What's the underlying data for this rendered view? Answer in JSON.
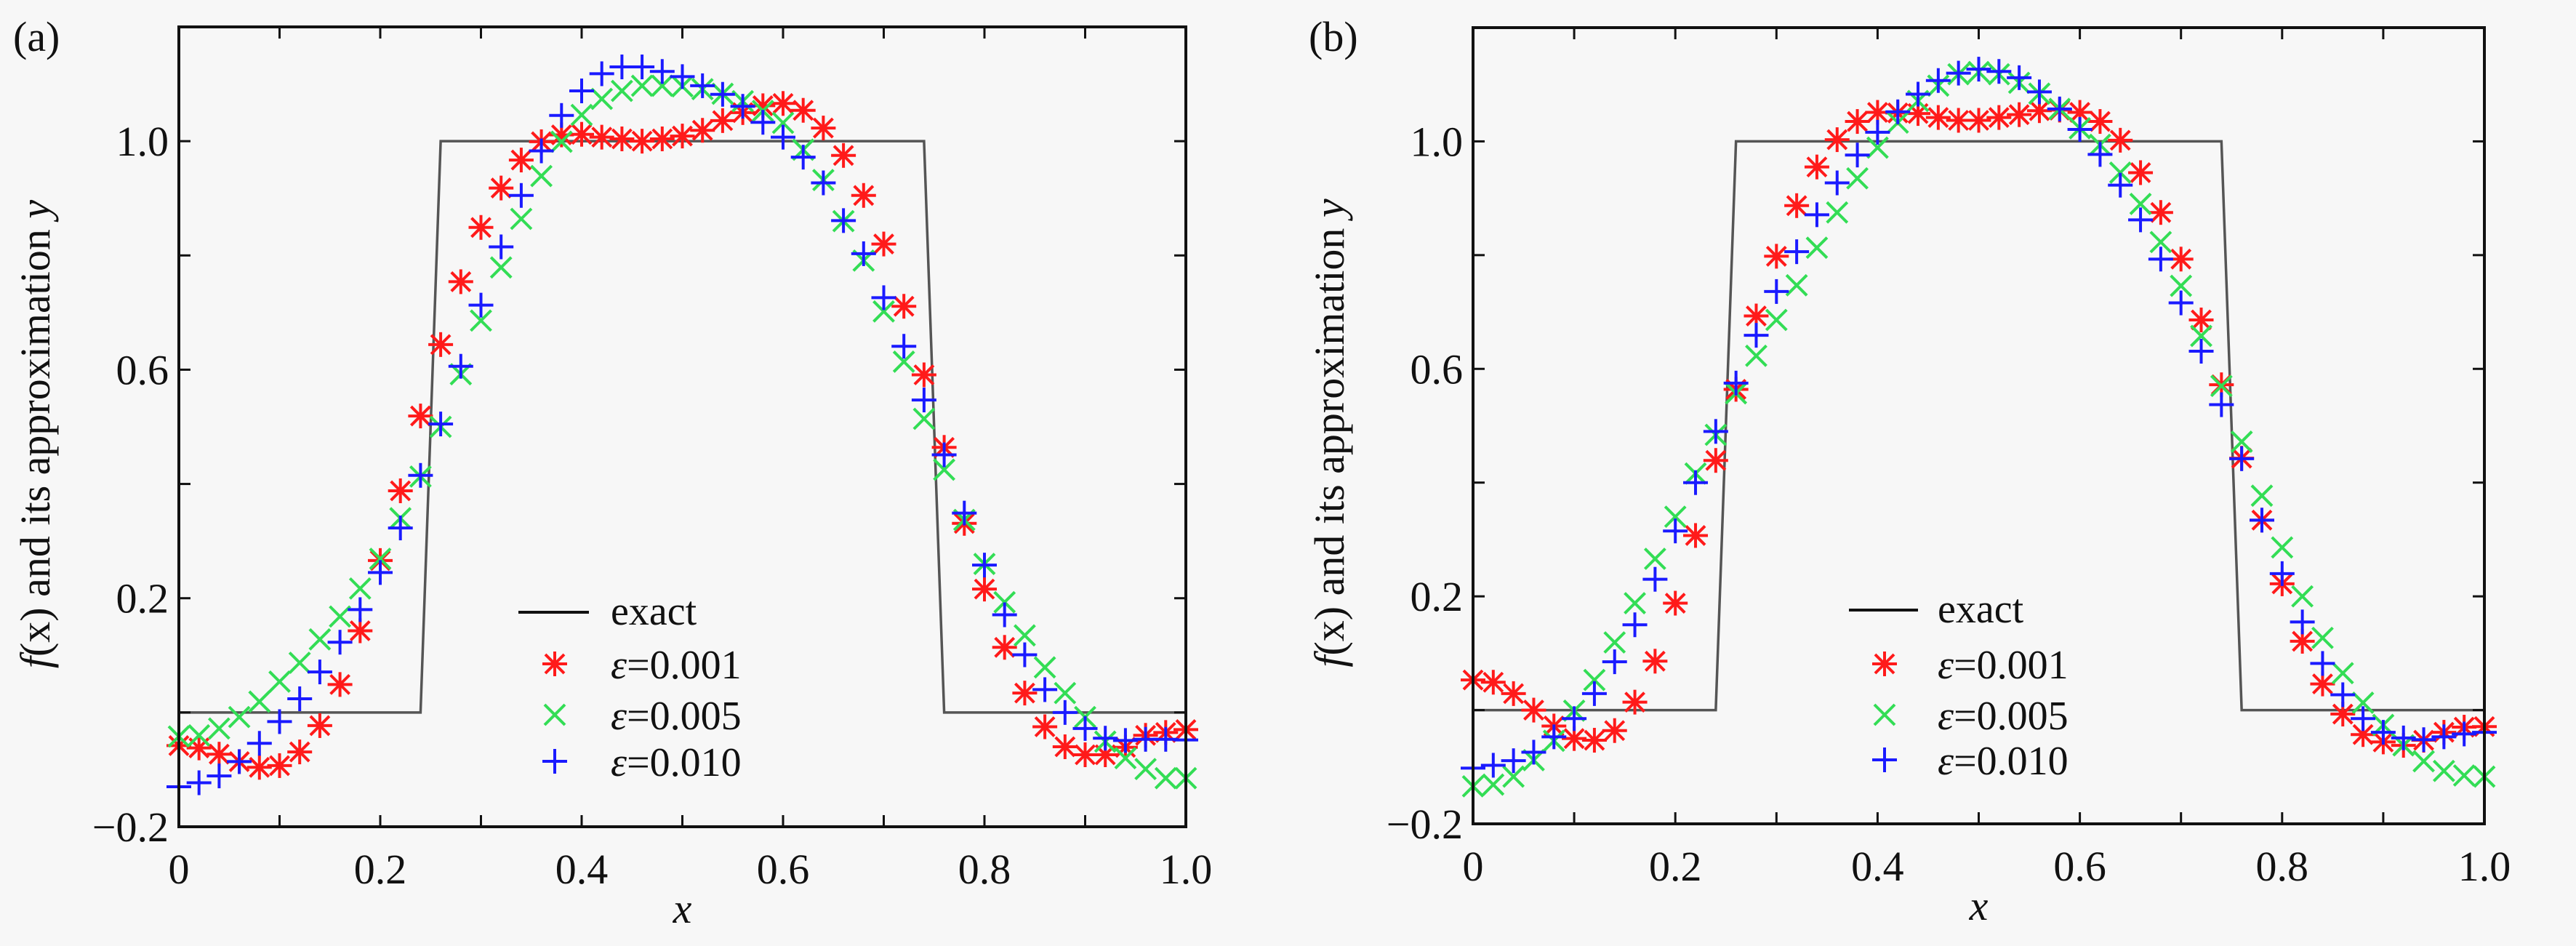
{
  "chart_data": [
    {
      "type": "scatter",
      "panel_label": "(a)",
      "xlabel": "x",
      "ylabel": {
        "f": "f",
        "x": "(x)",
        "rest": " and its approximation ",
        "y": "y"
      },
      "xlim": [
        0,
        1.0
      ],
      "ylim": [
        -0.2,
        1.2
      ],
      "xticks": [
        0,
        0.1,
        0.2,
        0.3,
        0.4,
        0.5,
        0.6,
        0.7,
        0.8,
        0.9,
        1.0
      ],
      "xtick_labels": [
        {
          "v": 0,
          "t": "0"
        },
        {
          "v": 0.2,
          "t": "0.2"
        },
        {
          "v": 0.4,
          "t": "0.4"
        },
        {
          "v": 0.6,
          "t": "0.6"
        },
        {
          "v": 0.8,
          "t": "0.8"
        },
        {
          "v": 1.0,
          "t": "1.0"
        }
      ],
      "yticks": [
        -0.2,
        0,
        0.2,
        0.4,
        0.6,
        0.8,
        1.0
      ],
      "ytick_labels": [
        {
          "v": -0.2,
          "t": "−0.2"
        },
        {
          "v": 0.2,
          "t": "0.2"
        },
        {
          "v": 0.6,
          "t": "0.6"
        },
        {
          "v": 1.0,
          "t": "1.0"
        }
      ],
      "grid": false,
      "legend_position": "lower-center",
      "exact": {
        "name": "exact",
        "x": [
          0,
          0.24,
          0.26,
          0.74,
          0.76,
          1.0
        ],
        "y": [
          0,
          0,
          1,
          1,
          0,
          0
        ],
        "color": "#555555"
      },
      "x": [
        0,
        0.02,
        0.04,
        0.06,
        0.08,
        0.1,
        0.12,
        0.14,
        0.16,
        0.18,
        0.2,
        0.22,
        0.24,
        0.26,
        0.28,
        0.3,
        0.32,
        0.34,
        0.36,
        0.38,
        0.4,
        0.42,
        0.44,
        0.46,
        0.48,
        0.5,
        0.52,
        0.54,
        0.56,
        0.58,
        0.6,
        0.62,
        0.64,
        0.66,
        0.68,
        0.7,
        0.72,
        0.74,
        0.76,
        0.78,
        0.8,
        0.82,
        0.84,
        0.86,
        0.88,
        0.9,
        0.92,
        0.94,
        0.96,
        0.98,
        1.0
      ],
      "series": [
        {
          "name": "ε=0.001",
          "eps": "0.001",
          "marker": "asterisk",
          "color": "#ff1a1a",
          "values": [
            -0.058,
            -0.062,
            -0.073,
            -0.086,
            -0.096,
            -0.093,
            -0.069,
            -0.023,
            0.049,
            0.143,
            0.266,
            0.388,
            0.519,
            0.644,
            0.754,
            0.849,
            0.918,
            0.967,
            0.999,
            1.011,
            1.012,
            1.007,
            1.004,
            1.0,
            1.004,
            1.009,
            1.019,
            1.036,
            1.05,
            1.062,
            1.066,
            1.054,
            1.023,
            0.975,
            0.905,
            0.82,
            0.711,
            0.591,
            0.464,
            0.331,
            0.216,
            0.114,
            0.034,
            -0.025,
            -0.06,
            -0.074,
            -0.074,
            -0.061,
            -0.04,
            -0.035,
            -0.03
          ]
        },
        {
          "name": "ε=0.005",
          "eps": "0.005",
          "marker": "x",
          "color": "#33dd55",
          "values": [
            -0.042,
            -0.04,
            -0.028,
            -0.008,
            0.019,
            0.054,
            0.087,
            0.128,
            0.168,
            0.217,
            0.269,
            0.34,
            0.413,
            0.5,
            0.592,
            0.686,
            0.779,
            0.864,
            0.939,
            0.999,
            1.046,
            1.074,
            1.088,
            1.097,
            1.097,
            1.096,
            1.091,
            1.083,
            1.07,
            1.053,
            1.032,
            0.985,
            0.932,
            0.86,
            0.791,
            0.702,
            0.614,
            0.514,
            0.425,
            0.337,
            0.26,
            0.193,
            0.135,
            0.079,
            0.034,
            -0.008,
            -0.051,
            -0.08,
            -0.099,
            -0.115,
            -0.115
          ]
        },
        {
          "name": "ε=0.010",
          "eps": "0.010",
          "marker": "plus",
          "color": "#1a1aff",
          "values": [
            -0.13,
            -0.123,
            -0.111,
            -0.086,
            -0.054,
            -0.016,
            0.024,
            0.071,
            0.123,
            0.18,
            0.245,
            0.323,
            0.415,
            0.505,
            0.606,
            0.713,
            0.815,
            0.905,
            0.983,
            1.045,
            1.088,
            1.118,
            1.13,
            1.13,
            1.122,
            1.113,
            1.097,
            1.082,
            1.061,
            1.033,
            1.007,
            0.972,
            0.927,
            0.861,
            0.803,
            0.726,
            0.641,
            0.547,
            0.451,
            0.349,
            0.258,
            0.171,
            0.101,
            0.04,
            0.0,
            -0.028,
            -0.045,
            -0.049,
            -0.047,
            -0.047,
            -0.048
          ]
        }
      ]
    },
    {
      "type": "scatter",
      "panel_label": "(b)",
      "xlabel": "x",
      "ylabel": {
        "f": "f",
        "x": "(x)",
        "rest": " and its approximation ",
        "y": "y"
      },
      "xlim": [
        0,
        1.0
      ],
      "ylim": [
        -0.2,
        1.2
      ],
      "xticks": [
        0,
        0.1,
        0.2,
        0.3,
        0.4,
        0.5,
        0.6,
        0.7,
        0.8,
        0.9,
        1.0
      ],
      "xtick_labels": [
        {
          "v": 0,
          "t": "0"
        },
        {
          "v": 0.2,
          "t": "0.2"
        },
        {
          "v": 0.4,
          "t": "0.4"
        },
        {
          "v": 0.6,
          "t": "0.6"
        },
        {
          "v": 0.8,
          "t": "0.8"
        },
        {
          "v": 1.0,
          "t": "1.0"
        }
      ],
      "yticks": [
        -0.2,
        0,
        0.2,
        0.4,
        0.6,
        0.8,
        1.0
      ],
      "ytick_labels": [
        {
          "v": -0.2,
          "t": "−0.2"
        },
        {
          "v": 0.2,
          "t": "0.2"
        },
        {
          "v": 0.6,
          "t": "0.6"
        },
        {
          "v": 1.0,
          "t": "1.0"
        }
      ],
      "grid": false,
      "legend_position": "lower-center",
      "exact": {
        "name": "exact",
        "x": [
          0,
          0.24,
          0.26,
          0.74,
          0.76,
          1.0
        ],
        "y": [
          0,
          0,
          1,
          1,
          0,
          0
        ],
        "color": "#555555"
      },
      "x": [
        0,
        0.02,
        0.04,
        0.06,
        0.08,
        0.1,
        0.12,
        0.14,
        0.16,
        0.18,
        0.2,
        0.22,
        0.24,
        0.26,
        0.28,
        0.3,
        0.32,
        0.34,
        0.36,
        0.38,
        0.4,
        0.42,
        0.44,
        0.46,
        0.48,
        0.5,
        0.52,
        0.54,
        0.56,
        0.58,
        0.6,
        0.62,
        0.64,
        0.66,
        0.68,
        0.7,
        0.72,
        0.74,
        0.76,
        0.78,
        0.8,
        0.82,
        0.84,
        0.86,
        0.88,
        0.9,
        0.92,
        0.94,
        0.96,
        0.98,
        1.0
      ],
      "series": [
        {
          "name": "ε=0.001",
          "eps": "0.001",
          "marker": "asterisk",
          "color": "#ff1a1a",
          "values": [
            0.053,
            0.049,
            0.029,
            0.0,
            -0.028,
            -0.05,
            -0.053,
            -0.036,
            0.014,
            0.086,
            0.188,
            0.307,
            0.439,
            0.564,
            0.693,
            0.798,
            0.887,
            0.955,
            1.003,
            1.035,
            1.051,
            1.05,
            1.049,
            1.042,
            1.037,
            1.037,
            1.042,
            1.047,
            1.054,
            1.055,
            1.051,
            1.035,
            1.002,
            0.945,
            0.875,
            0.793,
            0.686,
            0.572,
            0.443,
            0.334,
            0.222,
            0.121,
            0.046,
            -0.007,
            -0.043,
            -0.056,
            -0.062,
            -0.053,
            -0.039,
            -0.03,
            -0.029
          ]
        },
        {
          "name": "ε=0.005",
          "eps": "0.005",
          "marker": "x",
          "color": "#33dd55",
          "values": [
            -0.134,
            -0.131,
            -0.117,
            -0.088,
            -0.054,
            -0.001,
            0.053,
            0.119,
            0.188,
            0.266,
            0.34,
            0.416,
            0.484,
            0.557,
            0.623,
            0.686,
            0.747,
            0.813,
            0.875,
            0.935,
            0.989,
            1.033,
            1.071,
            1.098,
            1.118,
            1.122,
            1.118,
            1.103,
            1.084,
            1.057,
            1.023,
            0.994,
            0.945,
            0.89,
            0.823,
            0.746,
            0.658,
            0.57,
            0.472,
            0.377,
            0.286,
            0.2,
            0.127,
            0.065,
            0.013,
            -0.026,
            -0.062,
            -0.09,
            -0.107,
            -0.115,
            -0.117
          ]
        },
        {
          "name": "ε=0.010",
          "eps": "0.010",
          "marker": "plus",
          "color": "#1a1aff",
          "values": [
            -0.102,
            -0.097,
            -0.089,
            -0.074,
            -0.047,
            -0.015,
            0.029,
            0.085,
            0.15,
            0.23,
            0.315,
            0.4,
            0.49,
            0.575,
            0.659,
            0.736,
            0.806,
            0.871,
            0.927,
            0.976,
            1.016,
            1.052,
            1.083,
            1.107,
            1.12,
            1.127,
            1.123,
            1.112,
            1.087,
            1.057,
            1.021,
            0.977,
            0.923,
            0.862,
            0.793,
            0.716,
            0.631,
            0.537,
            0.442,
            0.334,
            0.24,
            0.155,
            0.082,
            0.027,
            -0.015,
            -0.039,
            -0.049,
            -0.052,
            -0.047,
            -0.042,
            -0.039
          ]
        }
      ]
    }
  ]
}
